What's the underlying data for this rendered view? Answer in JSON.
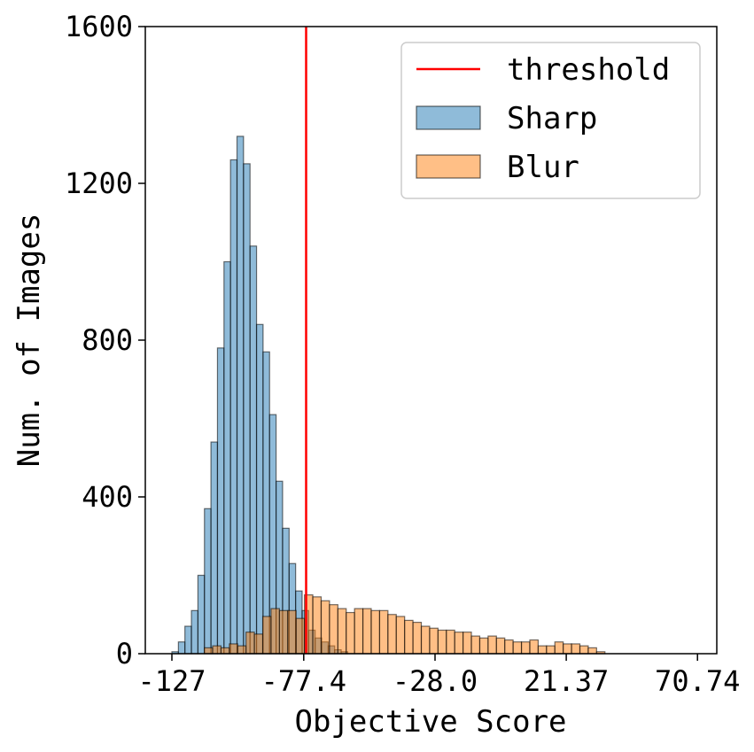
{
  "chart_data": {
    "type": "bar",
    "title": "",
    "xlabel": "Objective Score",
    "ylabel": "Num. of Images",
    "xlim": [
      -137,
      78
    ],
    "ylim": [
      0,
      1600
    ],
    "x_ticks": [
      {
        "value": -127,
        "label": "-127"
      },
      {
        "value": -77.4,
        "label": "-77.4"
      },
      {
        "value": -28.0,
        "label": "-28.0"
      },
      {
        "value": 21.37,
        "label": "21.37"
      },
      {
        "value": 70.74,
        "label": "70.74"
      }
    ],
    "y_ticks": [
      {
        "value": 0,
        "label": "0"
      },
      {
        "value": 400,
        "label": "400"
      },
      {
        "value": 800,
        "label": "800"
      },
      {
        "value": 1200,
        "label": "1200"
      },
      {
        "value": 1600,
        "label": "1600"
      }
    ],
    "grid": false,
    "legend_position": "top-right",
    "threshold": {
      "name": "threshold",
      "x": -76.5,
      "color": "#ff0000"
    },
    "series": [
      {
        "name": "Sharp",
        "color": "#1f77b4",
        "bin_start": -127.0,
        "bin_width": 2.45,
        "values": [
          5,
          30,
          70,
          110,
          200,
          370,
          540,
          780,
          1000,
          1260,
          1320,
          1250,
          1040,
          840,
          770,
          610,
          440,
          320,
          230,
          160,
          110,
          60,
          40,
          30,
          20,
          10,
          5
        ]
      },
      {
        "name": "Blur",
        "color": "#ff7f0e",
        "bin_start": -114.8,
        "bin_width": 3.14,
        "values": [
          15,
          20,
          15,
          25,
          20,
          55,
          50,
          95,
          115,
          110,
          110,
          90,
          150,
          145,
          135,
          125,
          115,
          105,
          115,
          115,
          110,
          110,
          100,
          95,
          85,
          80,
          70,
          65,
          60,
          60,
          55,
          55,
          45,
          40,
          45,
          40,
          35,
          30,
          30,
          35,
          20,
          20,
          30,
          25,
          25,
          20,
          15,
          5
        ]
      }
    ]
  }
}
